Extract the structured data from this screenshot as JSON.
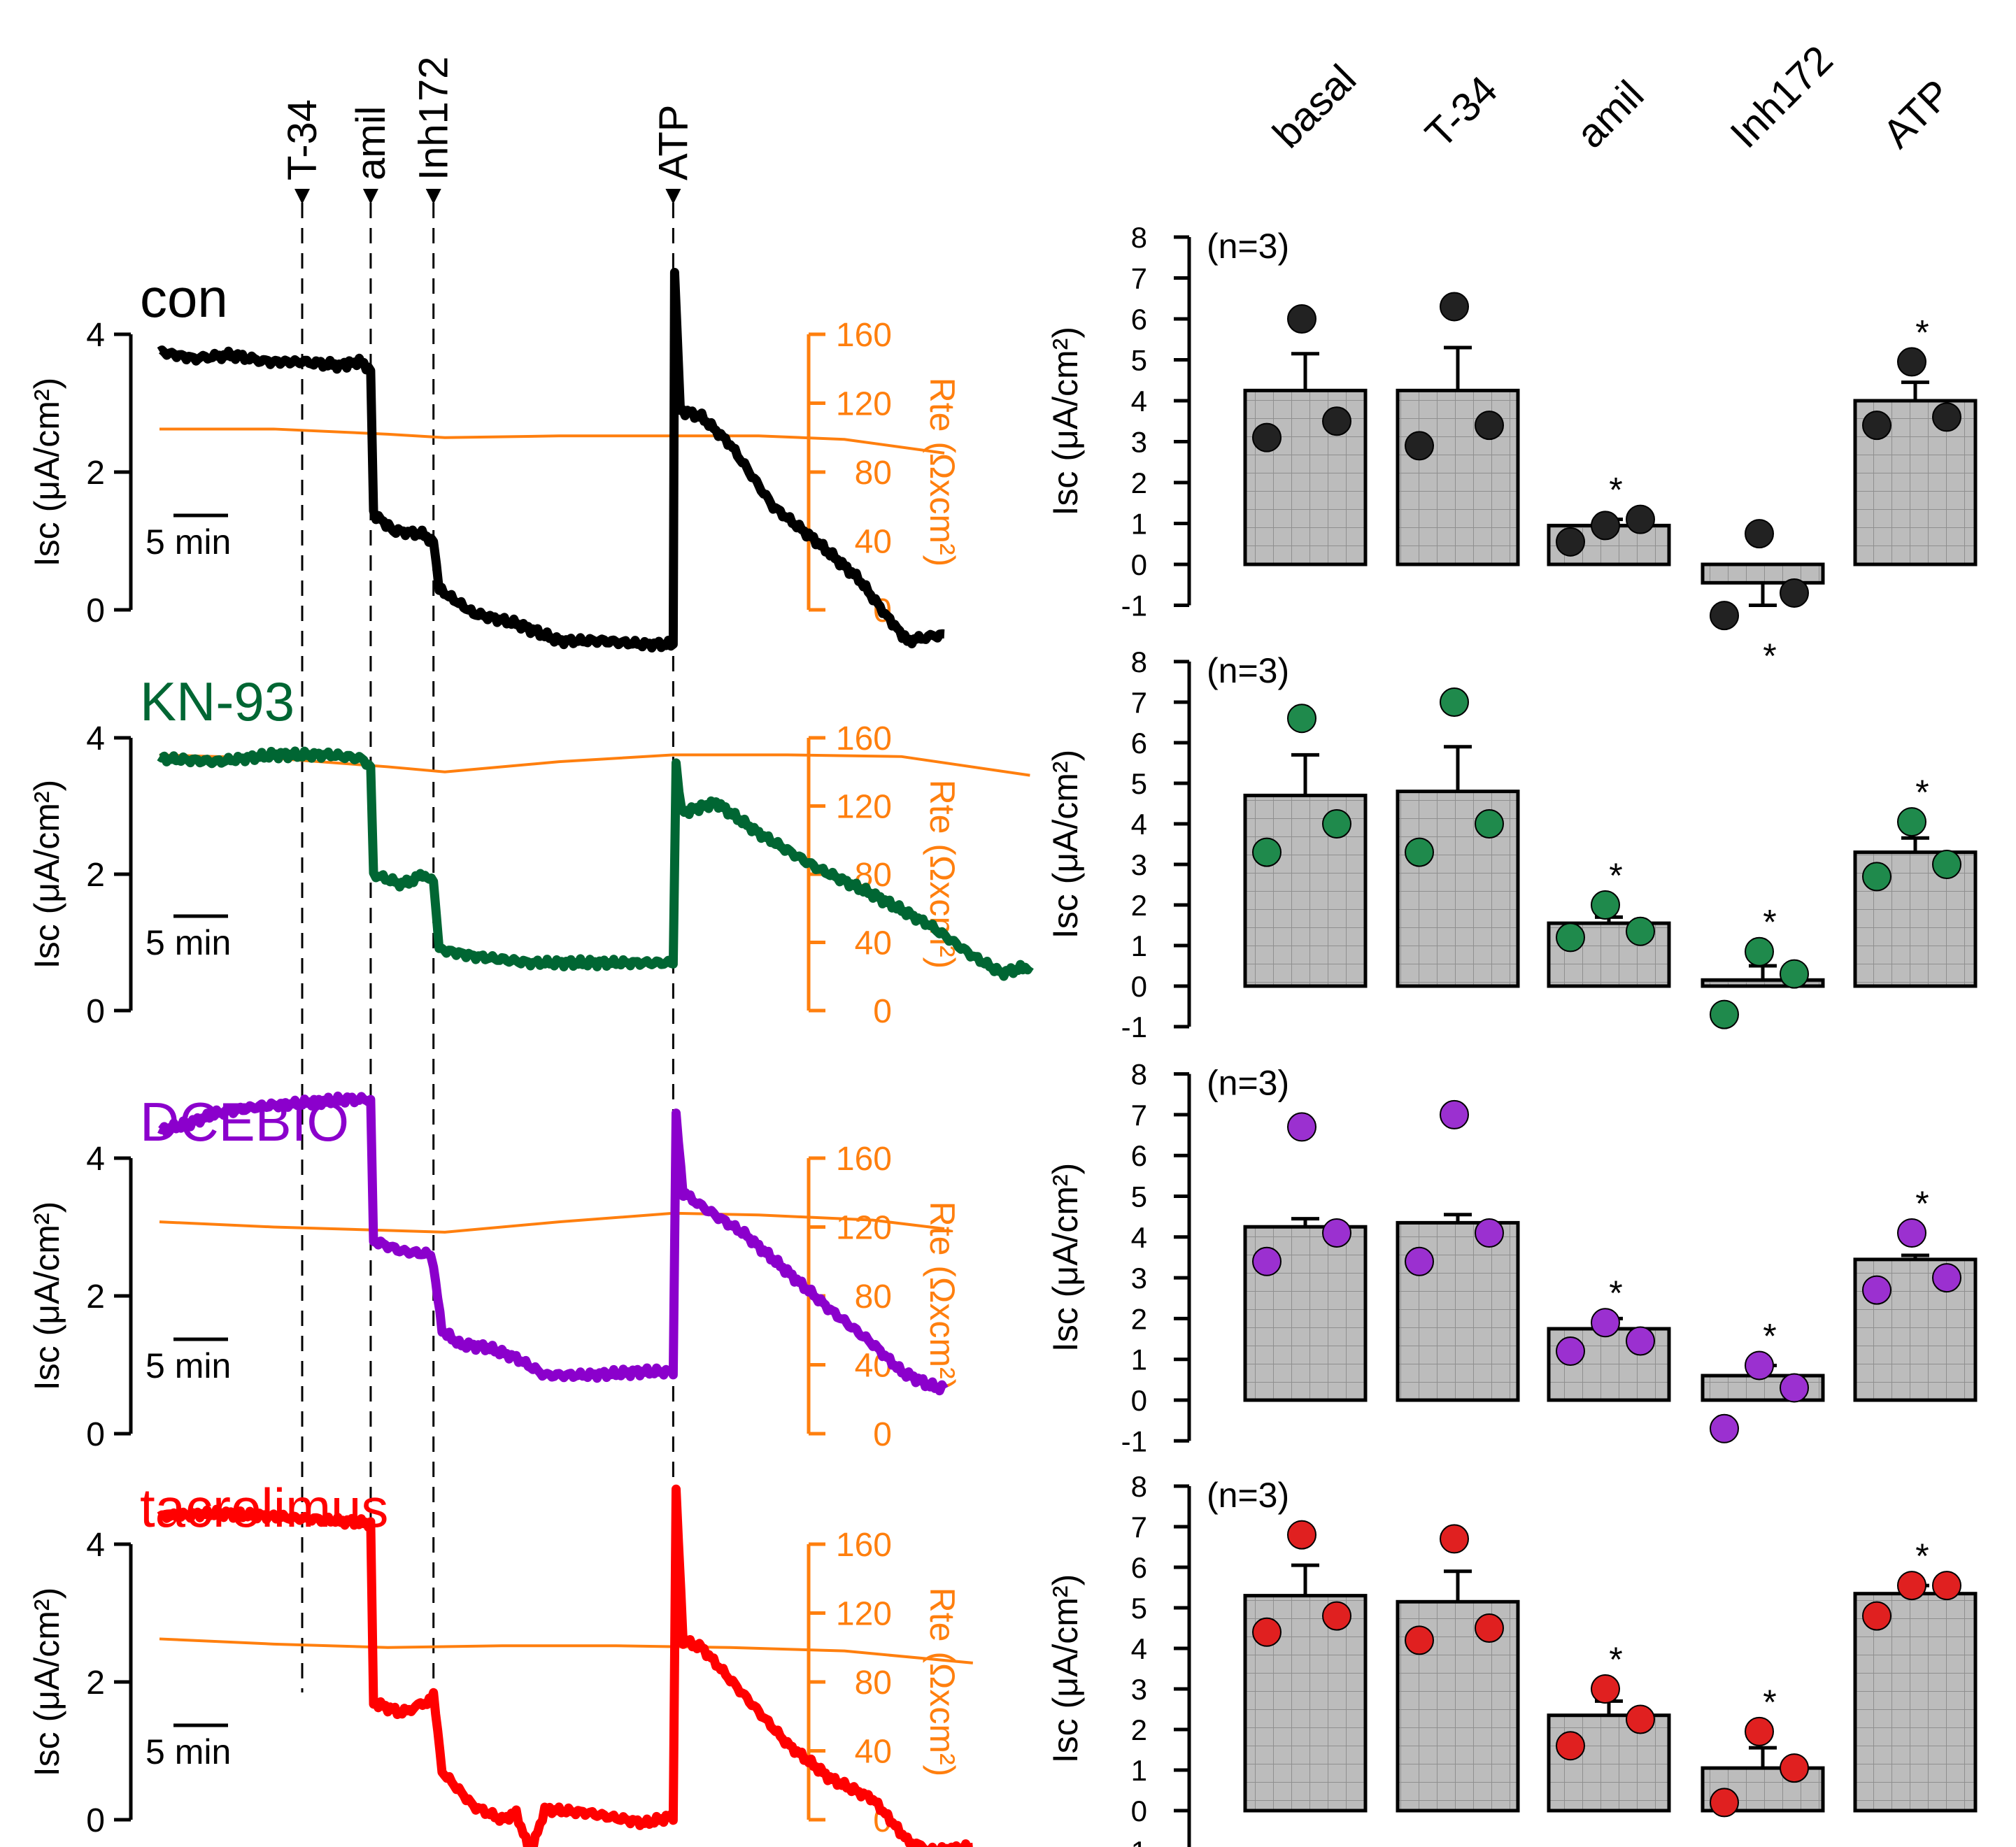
{
  "chart_data": {
    "type": "figure",
    "markers": [
      "T-34",
      "amil",
      "Inh172",
      "ATP"
    ],
    "categories": [
      "basal",
      "T-34",
      "amil",
      "Inh172",
      "ATP"
    ],
    "scale_bar": "5 min",
    "left_y_ticks": [
      "0",
      "2",
      "4"
    ],
    "right_y_ticks": [
      "0",
      "40",
      "80",
      "120",
      "160"
    ],
    "right_y_label": "Rte (Ωxcm²)",
    "left_y_label": "Isc (μA/cm²)",
    "bar_y_ticks": [
      "-1",
      "0",
      "1",
      "2",
      "3",
      "4",
      "5",
      "6",
      "7",
      "8"
    ],
    "bar_y_label": "Isc (μA/cm²)",
    "time_axis_min": [
      0,
      36
    ],
    "marker_times_min": [
      5.0,
      7.4,
      9.6,
      18.0
    ],
    "panels": [
      {
        "name": "con",
        "color": "#000000",
        "dot_color": "#222222",
        "n_label": "(n=3)",
        "isc_ylim": [
          0,
          4
        ],
        "trace_end_min": 27.5,
        "isc_trace": [
          [
            0,
            3.75
          ],
          [
            1.2,
            3.65
          ],
          [
            2.5,
            3.7
          ],
          [
            3.8,
            3.6
          ],
          [
            5,
            3.6
          ],
          [
            6.3,
            3.55
          ],
          [
            7.0,
            3.6
          ],
          [
            7.4,
            3.5
          ],
          [
            7.5,
            1.4
          ],
          [
            8.2,
            1.15
          ],
          [
            9.2,
            1.1
          ],
          [
            9.6,
            1.0
          ],
          [
            9.8,
            0.3
          ],
          [
            11,
            -0.05
          ],
          [
            12.5,
            -0.2
          ],
          [
            14,
            -0.45
          ],
          [
            15.5,
            -0.45
          ],
          [
            17,
            -0.5
          ],
          [
            18,
            -0.5
          ],
          [
            18.05,
            4.9
          ],
          [
            18.25,
            2.9
          ],
          [
            19,
            2.8
          ],
          [
            20,
            2.4
          ],
          [
            21.5,
            1.5
          ],
          [
            23,
            1.0
          ],
          [
            24.5,
            0.45
          ],
          [
            25.5,
            -0.1
          ],
          [
            26.2,
            -0.45
          ],
          [
            27.5,
            -0.35
          ]
        ],
        "rte_trace": [
          [
            0,
            105
          ],
          [
            4,
            105
          ],
          [
            8,
            102
          ],
          [
            10,
            100
          ],
          [
            14,
            101
          ],
          [
            18,
            101
          ],
          [
            21,
            101
          ],
          [
            24,
            99
          ],
          [
            27.5,
            91
          ]
        ],
        "means": [
          4.25,
          4.25,
          0.95,
          -0.45,
          4.0
        ],
        "sems": [
          0.9,
          1.05,
          0.15,
          0.55,
          0.45
        ],
        "points": [
          [
            3.1,
            3.5,
            6.0
          ],
          [
            2.9,
            3.4,
            6.3
          ],
          [
            0.55,
            1.1,
            0.95
          ],
          [
            -1.25,
            -0.7,
            0.75
          ],
          [
            3.4,
            3.6,
            4.95
          ]
        ],
        "stars": [
          "",
          "",
          "*",
          "*",
          "*"
        ]
      },
      {
        "name": "KN-93",
        "color": "#006633",
        "dot_color": "#1f8a4c",
        "n_label": "(n=3)",
        "isc_ylim": [
          0,
          4
        ],
        "trace_end_min": 30.5,
        "isc_trace": [
          [
            0,
            3.7
          ],
          [
            2,
            3.65
          ],
          [
            4,
            3.75
          ],
          [
            6,
            3.75
          ],
          [
            7.0,
            3.7
          ],
          [
            7.4,
            3.6
          ],
          [
            7.5,
            2.0
          ],
          [
            8.5,
            1.85
          ],
          [
            9.3,
            2.0
          ],
          [
            9.6,
            1.9
          ],
          [
            9.8,
            0.9
          ],
          [
            11,
            0.8
          ],
          [
            13,
            0.7
          ],
          [
            15,
            0.7
          ],
          [
            17,
            0.7
          ],
          [
            18.0,
            0.7
          ],
          [
            18.1,
            3.6
          ],
          [
            18.3,
            2.9
          ],
          [
            19.5,
            3.05
          ],
          [
            21,
            2.6
          ],
          [
            23,
            2.1
          ],
          [
            25,
            1.7
          ],
          [
            27,
            1.25
          ],
          [
            28.5,
            0.8
          ],
          [
            29.5,
            0.55
          ],
          [
            30.5,
            0.65
          ]
        ],
        "rte_trace": [
          [
            0,
            150
          ],
          [
            4,
            148
          ],
          [
            8,
            143
          ],
          [
            10,
            140
          ],
          [
            14,
            146
          ],
          [
            18,
            150
          ],
          [
            22,
            150
          ],
          [
            26,
            149
          ],
          [
            30.5,
            138
          ]
        ],
        "means": [
          4.7,
          4.8,
          1.55,
          0.15,
          3.3
        ],
        "sems": [
          1.0,
          1.1,
          0.15,
          0.35,
          0.35
        ],
        "points": [
          [
            3.3,
            4.0,
            6.6
          ],
          [
            3.3,
            4.0,
            7.0
          ],
          [
            1.2,
            1.35,
            2.0
          ],
          [
            -0.7,
            0.3,
            0.85
          ],
          [
            2.7,
            3.0,
            4.05
          ]
        ],
        "stars": [
          "",
          "",
          "*",
          "*",
          "*"
        ]
      },
      {
        "name": "DCEBIO",
        "color": "#8b00cc",
        "dot_color": "#9b30d0",
        "n_label": "(n=3)",
        "isc_ylim": [
          0,
          4
        ],
        "trace_end_min": 27.5,
        "isc_trace": [
          [
            0,
            4.4
          ],
          [
            1,
            4.5
          ],
          [
            2,
            4.65
          ],
          [
            3.5,
            4.75
          ],
          [
            5,
            4.8
          ],
          [
            6.5,
            4.85
          ],
          [
            7.4,
            4.85
          ],
          [
            7.5,
            2.8
          ],
          [
            8.5,
            2.65
          ],
          [
            9.5,
            2.6
          ],
          [
            9.6,
            2.4
          ],
          [
            9.9,
            1.5
          ],
          [
            10.5,
            1.3
          ],
          [
            11.5,
            1.25
          ],
          [
            12.5,
            1.1
          ],
          [
            13.5,
            0.85
          ],
          [
            15,
            0.85
          ],
          [
            17,
            0.9
          ],
          [
            18.0,
            0.9
          ],
          [
            18.1,
            4.6
          ],
          [
            18.35,
            3.5
          ],
          [
            19,
            3.3
          ],
          [
            20.5,
            2.9
          ],
          [
            22,
            2.35
          ],
          [
            23.5,
            1.8
          ],
          [
            25,
            1.3
          ],
          [
            26,
            0.9
          ],
          [
            27,
            0.7
          ],
          [
            27.5,
            0.65
          ]
        ],
        "rte_trace": [
          [
            0,
            123
          ],
          [
            4,
            120
          ],
          [
            8,
            118
          ],
          [
            10,
            117
          ],
          [
            14,
            123
          ],
          [
            18,
            128
          ],
          [
            21,
            127
          ],
          [
            25,
            124
          ],
          [
            27.5,
            119
          ]
        ],
        "means": [
          4.25,
          4.35,
          1.75,
          0.6,
          3.45
        ],
        "sems": [
          0.2,
          0.2,
          0.25,
          0.25,
          0.1
        ],
        "points": [
          [
            3.4,
            4.1,
            6.7
          ],
          [
            3.4,
            4.1,
            7.0
          ],
          [
            1.2,
            1.45,
            1.9
          ],
          [
            -0.7,
            0.3,
            0.85
          ],
          [
            2.7,
            3.0,
            4.1
          ]
        ],
        "stars": [
          "",
          "",
          "*",
          "*",
          "*"
        ]
      },
      {
        "name": "tacrolimus",
        "color": "#ff0000",
        "dot_color": "#e02020",
        "n_label": "(n=3)",
        "isc_ylim": [
          0,
          4
        ],
        "trace_end_min": 28.5,
        "isc_trace": [
          [
            0,
            4.4
          ],
          [
            2,
            4.45
          ],
          [
            4,
            4.4
          ],
          [
            6,
            4.35
          ],
          [
            7.4,
            4.3
          ],
          [
            7.5,
            1.7
          ],
          [
            8.5,
            1.55
          ],
          [
            9.3,
            1.7
          ],
          [
            9.6,
            1.8
          ],
          [
            9.9,
            0.7
          ],
          [
            11,
            0.2
          ],
          [
            12,
            0.0
          ],
          [
            12.5,
            0.1
          ],
          [
            13,
            -0.5
          ],
          [
            13.5,
            0.15
          ],
          [
            15,
            0.1
          ],
          [
            17,
            -0.05
          ],
          [
            18.0,
            0.05
          ],
          [
            18.1,
            4.75
          ],
          [
            18.35,
            2.6
          ],
          [
            19,
            2.5
          ],
          [
            20.5,
            1.8
          ],
          [
            22,
            1.1
          ],
          [
            23.5,
            0.6
          ],
          [
            25,
            0.3
          ],
          [
            26.2,
            -0.3
          ],
          [
            27,
            -0.45
          ],
          [
            28.5,
            -0.4
          ]
        ],
        "rte_trace": [
          [
            0,
            105
          ],
          [
            4,
            102
          ],
          [
            8,
            100
          ],
          [
            12,
            101
          ],
          [
            16,
            101
          ],
          [
            20,
            100
          ],
          [
            24,
            98
          ],
          [
            28.5,
            91
          ]
        ],
        "means": [
          5.3,
          5.15,
          2.35,
          1.05,
          5.35
        ],
        "sems": [
          0.75,
          0.75,
          0.35,
          0.5,
          0.2
        ],
        "points": [
          [
            4.4,
            4.8,
            6.8
          ],
          [
            4.2,
            4.5,
            6.7
          ],
          [
            1.6,
            2.25,
            3.0
          ],
          [
            0.2,
            1.05,
            1.95
          ],
          [
            4.8,
            5.55,
            5.55
          ]
        ],
        "stars": [
          "",
          "",
          "*",
          "*",
          "*"
        ]
      }
    ]
  }
}
